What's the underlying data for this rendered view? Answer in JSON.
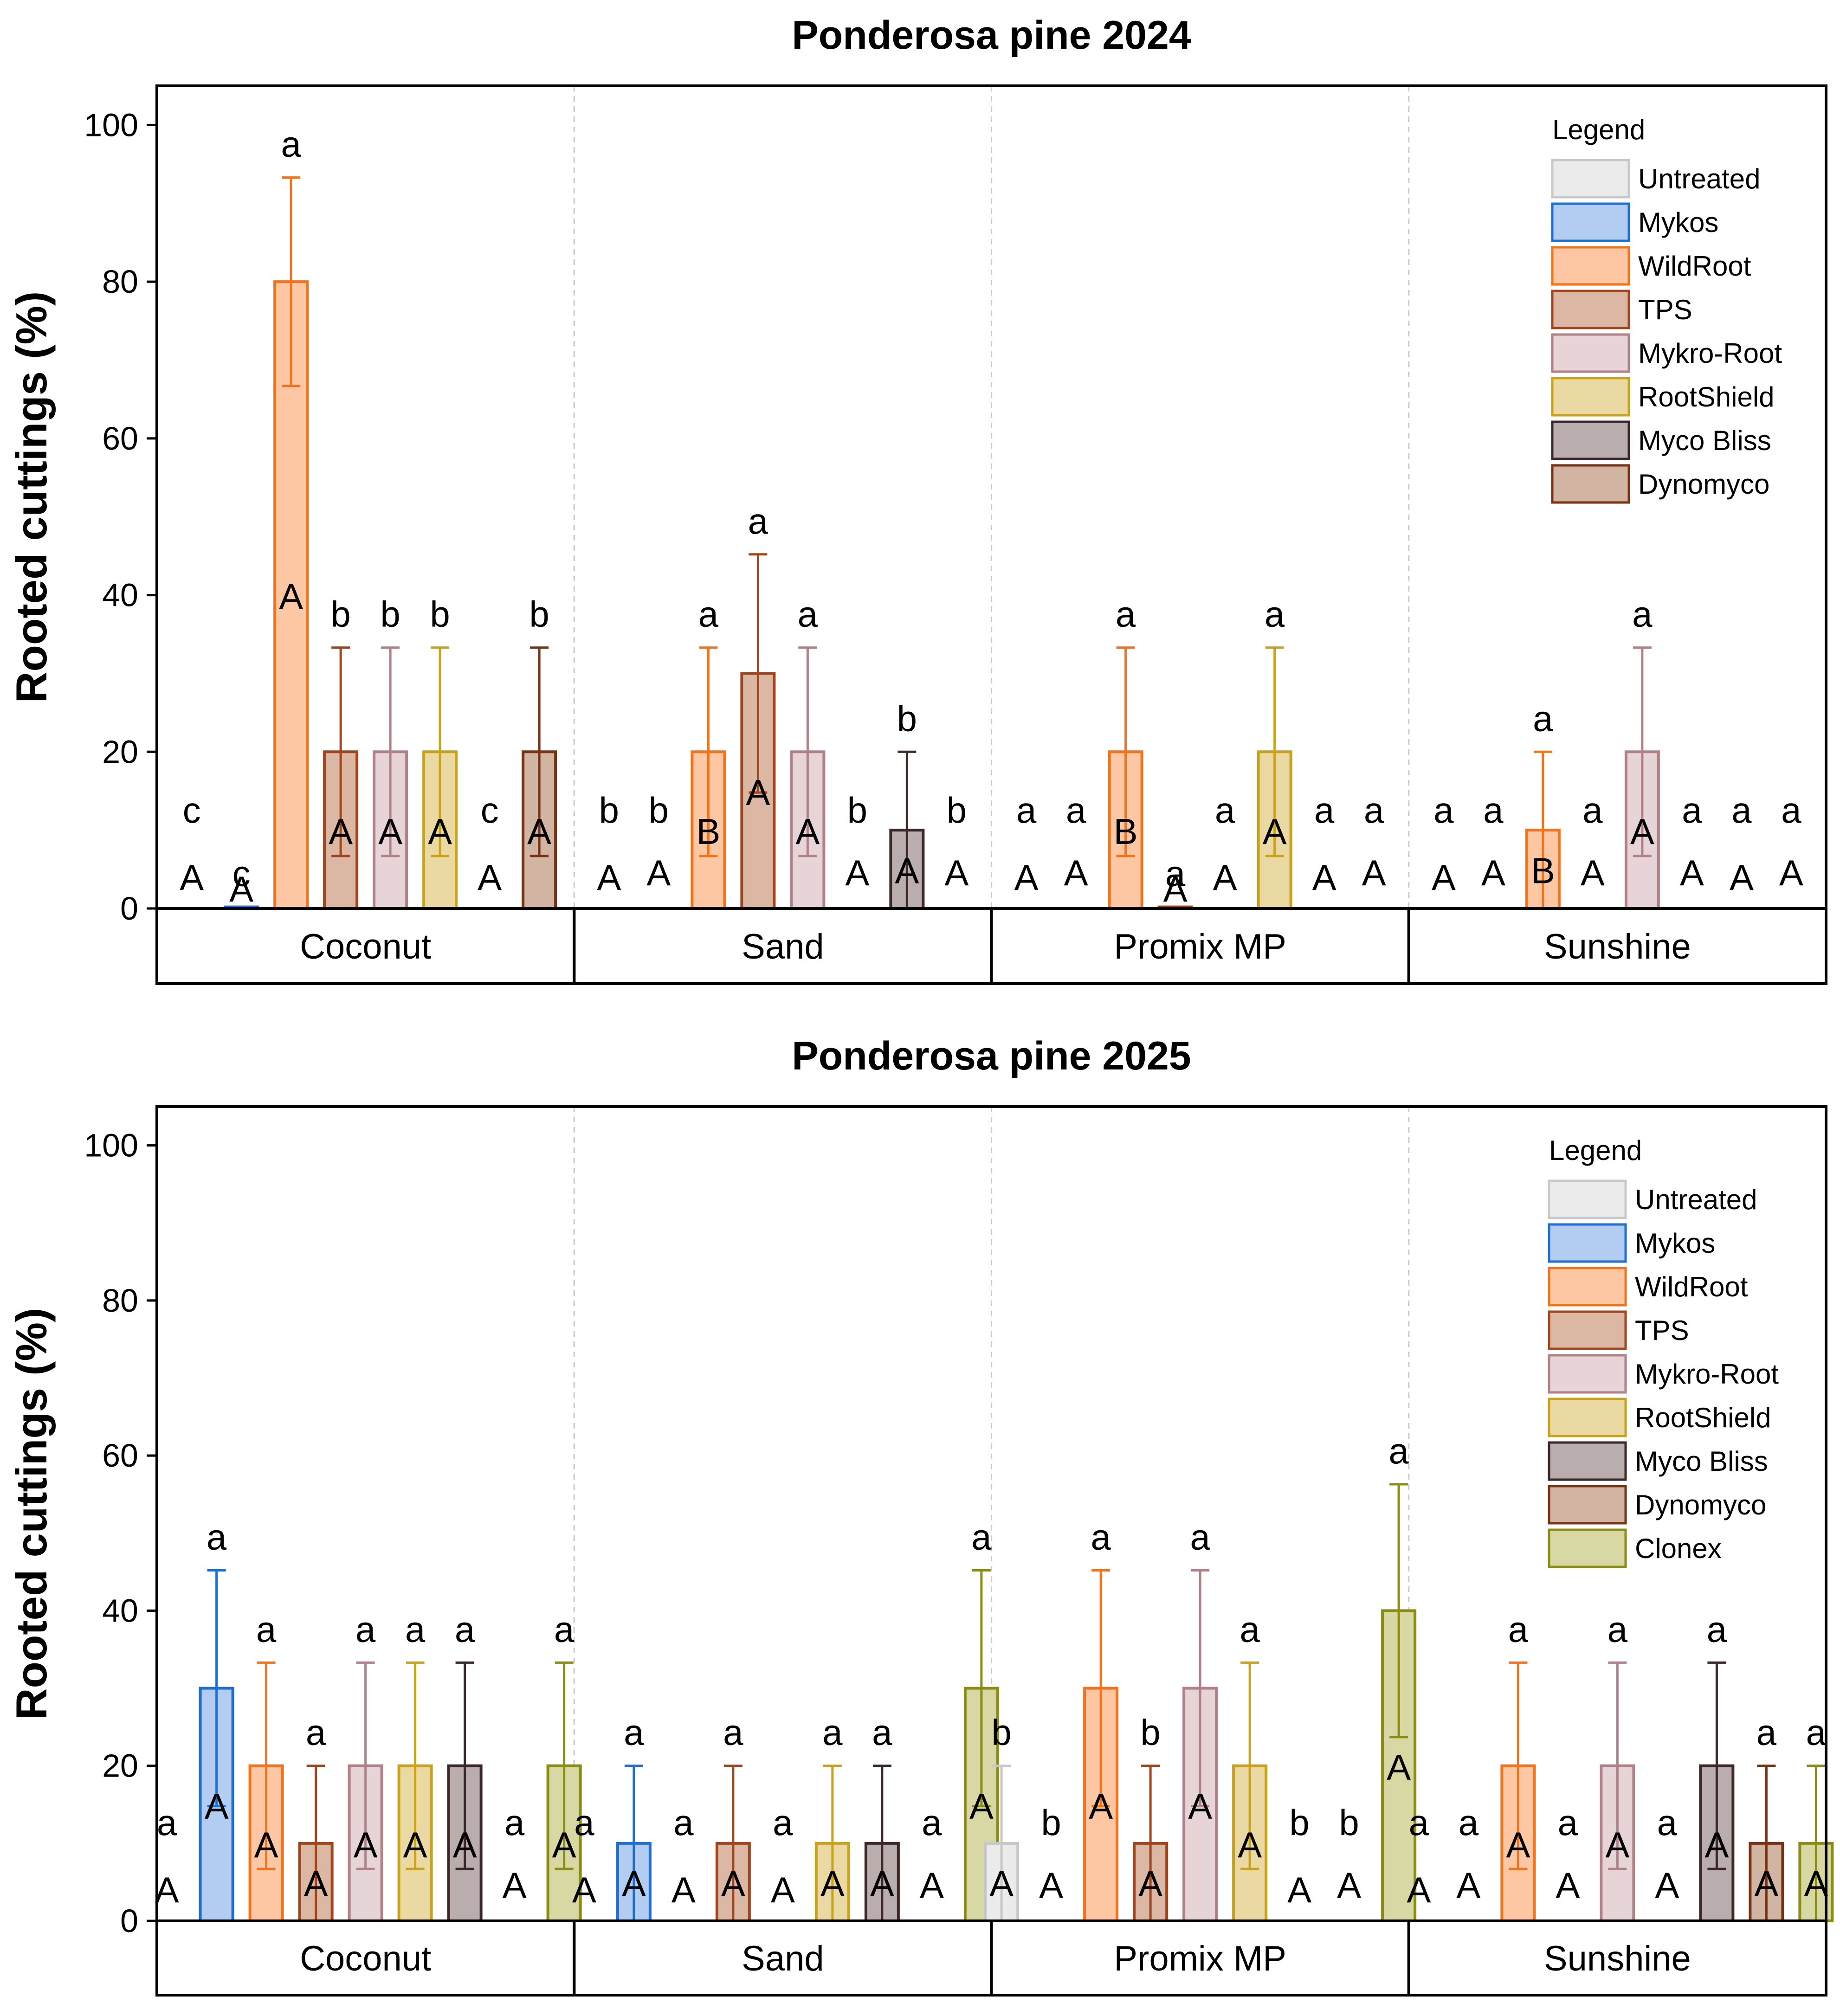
{
  "colors": {
    "Untreated": {
      "fill": "#ebebeb",
      "stroke": "#c8c8c8"
    },
    "Mykos": {
      "fill": "#b3cdf2",
      "stroke": "#1f6fd0"
    },
    "WildRoot": {
      "fill": "#fcc7a2",
      "stroke": "#f0731e"
    },
    "TPS": {
      "fill": "#dcb8a4",
      "stroke": "#a0461e"
    },
    "Mykro-Root": {
      "fill": "#e6d4d6",
      "stroke": "#b08288"
    },
    "RootShield": {
      "fill": "#ead9a2",
      "stroke": "#c9a21c"
    },
    "Myco Bliss": {
      "fill": "#b9adae",
      "stroke": "#3c2828"
    },
    "Dynomyco": {
      "fill": "#d2b4a3",
      "stroke": "#783214"
    },
    "Clonex": {
      "fill": "#d8d8a4",
      "stroke": "#8c8c14"
    }
  },
  "chart_data": [
    {
      "type": "bar",
      "title": "Ponderosa pine 2024",
      "ylabel": "Rooted cuttings (%)",
      "xlabel": "",
      "ylim": [
        0,
        105
      ],
      "yticks": [
        "0",
        "20",
        "40",
        "60",
        "80",
        "100"
      ],
      "ytick_values": [
        0,
        20,
        40,
        60,
        80,
        100
      ],
      "legend_title": "Legend",
      "legend_position": "top-right",
      "treatments": [
        "Untreated",
        "Mykos",
        "WildRoot",
        "TPS",
        "Mykro-Root",
        "RootShield",
        "Myco Bliss",
        "Dynomyco"
      ],
      "groups": [
        {
          "name": "Coconut",
          "values": [
            0,
            0.2,
            80,
            20,
            20,
            20,
            0,
            20
          ],
          "err_low": [
            null,
            null,
            66.7,
            6.7,
            6.7,
            6.7,
            null,
            6.7
          ],
          "err_high": [
            null,
            null,
            93.3,
            33.3,
            33.3,
            33.3,
            null,
            33.3
          ],
          "lower_letters": [
            "c",
            "c",
            "a",
            "b",
            "b",
            "b",
            "c",
            "b"
          ],
          "upper_letters": [
            "A",
            "A",
            "A",
            "A",
            "A",
            "A",
            "A",
            "A"
          ]
        },
        {
          "name": "Sand",
          "values": [
            0,
            0,
            20,
            30,
            20,
            0,
            10,
            0
          ],
          "err_low": [
            null,
            null,
            6.7,
            14.8,
            6.7,
            null,
            0,
            null
          ],
          "err_high": [
            null,
            null,
            33.3,
            45.2,
            33.3,
            null,
            20,
            null
          ],
          "lower_letters": [
            "b",
            "b",
            "a",
            "a",
            "a",
            "b",
            "b",
            "b"
          ],
          "upper_letters": [
            "A",
            "A",
            "B",
            "A",
            "A",
            "A",
            "A",
            "A"
          ]
        },
        {
          "name": "Promix MP",
          "values": [
            0,
            0,
            20,
            0.2,
            0,
            20,
            0,
            0
          ],
          "err_low": [
            null,
            null,
            6.7,
            null,
            null,
            6.7,
            null,
            null
          ],
          "err_high": [
            null,
            null,
            33.3,
            null,
            null,
            33.3,
            null,
            null
          ],
          "lower_letters": [
            "a",
            "a",
            "a",
            "a",
            "a",
            "a",
            "a",
            "a"
          ],
          "upper_letters": [
            "A",
            "A",
            "B",
            "A",
            "A",
            "A",
            "A",
            "A"
          ]
        },
        {
          "name": "Sunshine",
          "values": [
            0,
            0,
            10,
            0,
            20,
            0,
            0,
            0
          ],
          "err_low": [
            null,
            null,
            0,
            null,
            6.7,
            null,
            null,
            null
          ],
          "err_high": [
            null,
            null,
            20,
            null,
            33.3,
            null,
            null,
            null
          ],
          "lower_letters": [
            "a",
            "a",
            "a",
            "a",
            "a",
            "a",
            "a",
            "a"
          ],
          "upper_letters": [
            "A",
            "A",
            "B",
            "A",
            "A",
            "A",
            "A",
            "A"
          ]
        }
      ]
    },
    {
      "type": "bar",
      "title": "Ponderosa pine 2025",
      "ylabel": "Rooted cuttings (%)",
      "xlabel": "",
      "ylim": [
        0,
        105
      ],
      "yticks": [
        "0",
        "20",
        "40",
        "60",
        "80",
        "100"
      ],
      "ytick_values": [
        0,
        20,
        40,
        60,
        80,
        100
      ],
      "legend_title": "Legend",
      "legend_position": "top-right",
      "treatments": [
        "Untreated",
        "Mykos",
        "WildRoot",
        "TPS",
        "Mykro-Root",
        "RootShield",
        "Myco Bliss",
        "Dynomyco",
        "Clonex"
      ],
      "groups": [
        {
          "name": "Coconut",
          "values": [
            0,
            30,
            20,
            10,
            20,
            20,
            20,
            0,
            20
          ],
          "err_low": [
            null,
            14.8,
            6.7,
            0,
            6.7,
            6.7,
            6.7,
            null,
            6.7
          ],
          "err_high": [
            null,
            45.2,
            33.3,
            20,
            33.3,
            33.3,
            33.3,
            null,
            33.3
          ],
          "lower_letters": [
            "a",
            "a",
            "a",
            "a",
            "a",
            "a",
            "a",
            "a",
            "a"
          ],
          "upper_letters": [
            "A",
            "A",
            "A",
            "A",
            "A",
            "A",
            "A",
            "A",
            "A"
          ]
        },
        {
          "name": "Sand",
          "values": [
            0,
            10,
            0,
            10,
            0,
            10,
            10,
            0,
            30
          ],
          "err_low": [
            null,
            0,
            null,
            0,
            null,
            0,
            0,
            null,
            14.8
          ],
          "err_high": [
            null,
            20,
            null,
            20,
            null,
            20,
            20,
            null,
            45.2
          ],
          "lower_letters": [
            "a",
            "a",
            "a",
            "a",
            "a",
            "a",
            "a",
            "a",
            "a"
          ],
          "upper_letters": [
            "A",
            "A",
            "A",
            "A",
            "A",
            "A",
            "A",
            "A",
            "A"
          ]
        },
        {
          "name": "Promix MP",
          "values": [
            10,
            0,
            30,
            10,
            30,
            20,
            0,
            0,
            40
          ],
          "err_low": [
            0,
            null,
            14.8,
            0,
            14.8,
            6.7,
            null,
            null,
            23.7
          ],
          "err_high": [
            20,
            null,
            45.2,
            20,
            45.2,
            33.3,
            null,
            null,
            56.3
          ],
          "lower_letters": [
            "b",
            "b",
            "a",
            "b",
            "a",
            "a",
            "b",
            "b",
            "a"
          ],
          "upper_letters": [
            "A",
            "A",
            "A",
            "A",
            "A",
            "A",
            "A",
            "A",
            "A"
          ]
        },
        {
          "name": "Sunshine",
          "values": [
            0,
            0,
            20,
            0,
            20,
            0,
            20,
            10,
            10
          ],
          "err_low": [
            null,
            null,
            6.7,
            null,
            6.7,
            null,
            6.7,
            0,
            0
          ],
          "err_high": [
            null,
            null,
            33.3,
            null,
            33.3,
            null,
            33.3,
            20,
            20
          ],
          "lower_letters": [
            "a",
            "a",
            "a",
            "a",
            "a",
            "a",
            "a",
            "a",
            "a"
          ],
          "upper_letters": [
            "A",
            "A",
            "A",
            "A",
            "A",
            "A",
            "A",
            "A",
            "A"
          ]
        }
      ]
    }
  ]
}
